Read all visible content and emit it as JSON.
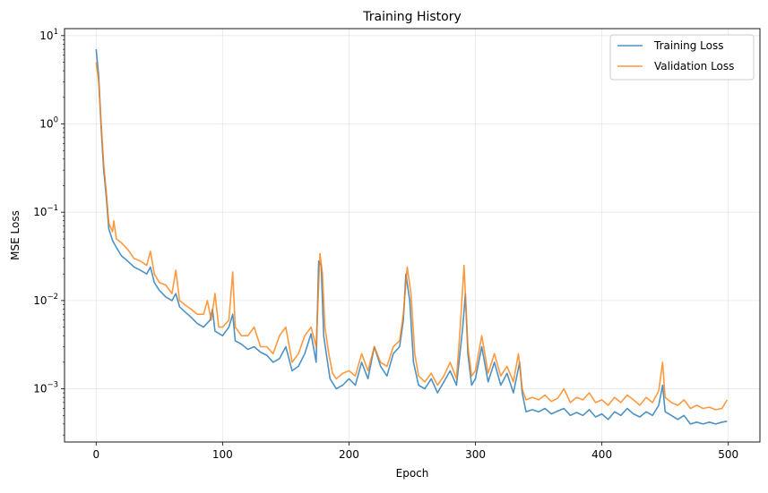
{
  "chart_data": {
    "type": "line",
    "title": "Training History",
    "xlabel": "Epoch",
    "ylabel": "MSE Loss",
    "yscale": "log",
    "xlim": [
      -25,
      525
    ],
    "ylim": [
      0.00025,
      12
    ],
    "xticks": [
      0,
      100,
      200,
      300,
      400,
      500
    ],
    "xtick_labels": [
      "0",
      "100",
      "200",
      "300",
      "400",
      "500"
    ],
    "yticks": [
      0.001,
      0.01,
      0.1,
      1,
      10
    ],
    "ytick_labels": [
      {
        "base": "10",
        "exp": "−3"
      },
      {
        "base": "10",
        "exp": "−2"
      },
      {
        "base": "10",
        "exp": "−1"
      },
      {
        "base": "10",
        "exp": "0"
      },
      {
        "base": "10",
        "exp": "1"
      }
    ],
    "grid": true,
    "legend_position": "top-right",
    "series": [
      {
        "name": "Training Loss",
        "color": "#1f77b4",
        "points": [
          [
            0,
            7.0
          ],
          [
            2,
            3.5
          ],
          [
            4,
            0.9
          ],
          [
            6,
            0.3
          ],
          [
            8,
            0.15
          ],
          [
            10,
            0.065
          ],
          [
            13,
            0.048
          ],
          [
            16,
            0.04
          ],
          [
            20,
            0.032
          ],
          [
            25,
            0.028
          ],
          [
            30,
            0.024
          ],
          [
            35,
            0.022
          ],
          [
            40,
            0.02
          ],
          [
            43,
            0.024
          ],
          [
            46,
            0.016
          ],
          [
            50,
            0.013
          ],
          [
            55,
            0.011
          ],
          [
            60,
            0.01
          ],
          [
            63,
            0.012
          ],
          [
            66,
            0.0085
          ],
          [
            70,
            0.0075
          ],
          [
            75,
            0.0065
          ],
          [
            80,
            0.0055
          ],
          [
            85,
            0.005
          ],
          [
            90,
            0.006
          ],
          [
            92,
            0.008
          ],
          [
            94,
            0.0045
          ],
          [
            100,
            0.004
          ],
          [
            105,
            0.005
          ],
          [
            108,
            0.007
          ],
          [
            110,
            0.0035
          ],
          [
            115,
            0.0032
          ],
          [
            120,
            0.0028
          ],
          [
            125,
            0.003
          ],
          [
            130,
            0.0026
          ],
          [
            135,
            0.0024
          ],
          [
            140,
            0.002
          ],
          [
            145,
            0.0022
          ],
          [
            150,
            0.003
          ],
          [
            155,
            0.0016
          ],
          [
            160,
            0.0018
          ],
          [
            165,
            0.0025
          ],
          [
            170,
            0.0042
          ],
          [
            174,
            0.002
          ],
          [
            176,
            0.028
          ],
          [
            178,
            0.025
          ],
          [
            180,
            0.004
          ],
          [
            183,
            0.002
          ],
          [
            185,
            0.0013
          ],
          [
            190,
            0.001
          ],
          [
            195,
            0.0011
          ],
          [
            200,
            0.0013
          ],
          [
            205,
            0.0011
          ],
          [
            210,
            0.002
          ],
          [
            215,
            0.0013
          ],
          [
            220,
            0.003
          ],
          [
            225,
            0.0018
          ],
          [
            230,
            0.0014
          ],
          [
            235,
            0.0025
          ],
          [
            240,
            0.003
          ],
          [
            243,
            0.006
          ],
          [
            245,
            0.02
          ],
          [
            248,
            0.01
          ],
          [
            251,
            0.002
          ],
          [
            255,
            0.0011
          ],
          [
            260,
            0.001
          ],
          [
            265,
            0.0013
          ],
          [
            270,
            0.0009
          ],
          [
            275,
            0.0012
          ],
          [
            280,
            0.0016
          ],
          [
            285,
            0.0011
          ],
          [
            290,
            0.005
          ],
          [
            292,
            0.012
          ],
          [
            294,
            0.0025
          ],
          [
            297,
            0.0011
          ],
          [
            300,
            0.0013
          ],
          [
            305,
            0.003
          ],
          [
            310,
            0.0012
          ],
          [
            315,
            0.002
          ],
          [
            320,
            0.0011
          ],
          [
            325,
            0.0015
          ],
          [
            330,
            0.0009
          ],
          [
            335,
            0.002
          ],
          [
            337,
            0.0009
          ],
          [
            340,
            0.00055
          ],
          [
            345,
            0.00058
          ],
          [
            350,
            0.00055
          ],
          [
            355,
            0.0006
          ],
          [
            360,
            0.00052
          ],
          [
            365,
            0.00056
          ],
          [
            370,
            0.0006
          ],
          [
            375,
            0.0005
          ],
          [
            380,
            0.00054
          ],
          [
            385,
            0.0005
          ],
          [
            390,
            0.00058
          ],
          [
            395,
            0.00048
          ],
          [
            400,
            0.00052
          ],
          [
            405,
            0.00045
          ],
          [
            410,
            0.00055
          ],
          [
            415,
            0.0005
          ],
          [
            420,
            0.0006
          ],
          [
            425,
            0.00052
          ],
          [
            430,
            0.00048
          ],
          [
            435,
            0.00055
          ],
          [
            440,
            0.0005
          ],
          [
            445,
            0.00065
          ],
          [
            448,
            0.0011
          ],
          [
            450,
            0.00055
          ],
          [
            455,
            0.0005
          ],
          [
            460,
            0.00045
          ],
          [
            465,
            0.0005
          ],
          [
            470,
            0.0004
          ],
          [
            475,
            0.00042
          ],
          [
            480,
            0.0004
          ],
          [
            485,
            0.00042
          ],
          [
            490,
            0.0004
          ],
          [
            495,
            0.00042
          ],
          [
            499,
            0.00043
          ]
        ]
      },
      {
        "name": "Validation Loss",
        "color": "#ff7f0e",
        "points": [
          [
            0,
            5.0
          ],
          [
            2,
            3.0
          ],
          [
            4,
            1.0
          ],
          [
            6,
            0.35
          ],
          [
            8,
            0.17
          ],
          [
            10,
            0.075
          ],
          [
            13,
            0.06
          ],
          [
            14,
            0.08
          ],
          [
            16,
            0.05
          ],
          [
            20,
            0.045
          ],
          [
            25,
            0.038
          ],
          [
            30,
            0.03
          ],
          [
            35,
            0.028
          ],
          [
            40,
            0.025
          ],
          [
            43,
            0.036
          ],
          [
            46,
            0.02
          ],
          [
            50,
            0.016
          ],
          [
            55,
            0.015
          ],
          [
            60,
            0.012
          ],
          [
            63,
            0.022
          ],
          [
            66,
            0.01
          ],
          [
            70,
            0.009
          ],
          [
            75,
            0.008
          ],
          [
            80,
            0.007
          ],
          [
            85,
            0.007
          ],
          [
            88,
            0.01
          ],
          [
            91,
            0.006
          ],
          [
            94,
            0.012
          ],
          [
            97,
            0.005
          ],
          [
            100,
            0.005
          ],
          [
            105,
            0.006
          ],
          [
            108,
            0.021
          ],
          [
            110,
            0.005
          ],
          [
            115,
            0.004
          ],
          [
            120,
            0.004
          ],
          [
            125,
            0.005
          ],
          [
            130,
            0.003
          ],
          [
            135,
            0.003
          ],
          [
            140,
            0.0025
          ],
          [
            145,
            0.004
          ],
          [
            150,
            0.005
          ],
          [
            155,
            0.002
          ],
          [
            160,
            0.0025
          ],
          [
            165,
            0.004
          ],
          [
            170,
            0.005
          ],
          [
            174,
            0.003
          ],
          [
            177,
            0.034
          ],
          [
            179,
            0.02
          ],
          [
            181,
            0.005
          ],
          [
            184,
            0.0025
          ],
          [
            187,
            0.0015
          ],
          [
            190,
            0.0013
          ],
          [
            195,
            0.0015
          ],
          [
            200,
            0.0016
          ],
          [
            205,
            0.0014
          ],
          [
            210,
            0.0025
          ],
          [
            215,
            0.0016
          ],
          [
            220,
            0.003
          ],
          [
            225,
            0.002
          ],
          [
            230,
            0.0018
          ],
          [
            235,
            0.003
          ],
          [
            240,
            0.0035
          ],
          [
            243,
            0.007
          ],
          [
            246,
            0.024
          ],
          [
            249,
            0.012
          ],
          [
            252,
            0.0025
          ],
          [
            255,
            0.0014
          ],
          [
            260,
            0.0012
          ],
          [
            265,
            0.0015
          ],
          [
            270,
            0.0011
          ],
          [
            275,
            0.0014
          ],
          [
            280,
            0.002
          ],
          [
            285,
            0.0013
          ],
          [
            288,
            0.005
          ],
          [
            291,
            0.025
          ],
          [
            294,
            0.003
          ],
          [
            297,
            0.0014
          ],
          [
            300,
            0.0016
          ],
          [
            305,
            0.004
          ],
          [
            310,
            0.0015
          ],
          [
            315,
            0.0025
          ],
          [
            320,
            0.0014
          ],
          [
            325,
            0.0018
          ],
          [
            330,
            0.0012
          ],
          [
            334,
            0.0025
          ],
          [
            337,
            0.001
          ],
          [
            340,
            0.00075
          ],
          [
            345,
            0.0008
          ],
          [
            350,
            0.00075
          ],
          [
            355,
            0.00085
          ],
          [
            360,
            0.00072
          ],
          [
            365,
            0.00078
          ],
          [
            370,
            0.001
          ],
          [
            375,
            0.0007
          ],
          [
            380,
            0.0008
          ],
          [
            385,
            0.00075
          ],
          [
            390,
            0.0009
          ],
          [
            395,
            0.0007
          ],
          [
            400,
            0.00075
          ],
          [
            405,
            0.00065
          ],
          [
            410,
            0.0008
          ],
          [
            415,
            0.0007
          ],
          [
            420,
            0.00085
          ],
          [
            425,
            0.00075
          ],
          [
            430,
            0.00065
          ],
          [
            435,
            0.0008
          ],
          [
            440,
            0.0007
          ],
          [
            445,
            0.00095
          ],
          [
            448,
            0.002
          ],
          [
            450,
            0.0008
          ],
          [
            455,
            0.0007
          ],
          [
            460,
            0.00065
          ],
          [
            465,
            0.00075
          ],
          [
            470,
            0.0006
          ],
          [
            475,
            0.00065
          ],
          [
            480,
            0.0006
          ],
          [
            485,
            0.00062
          ],
          [
            490,
            0.00058
          ],
          [
            495,
            0.0006
          ],
          [
            499,
            0.00075
          ]
        ]
      }
    ]
  }
}
